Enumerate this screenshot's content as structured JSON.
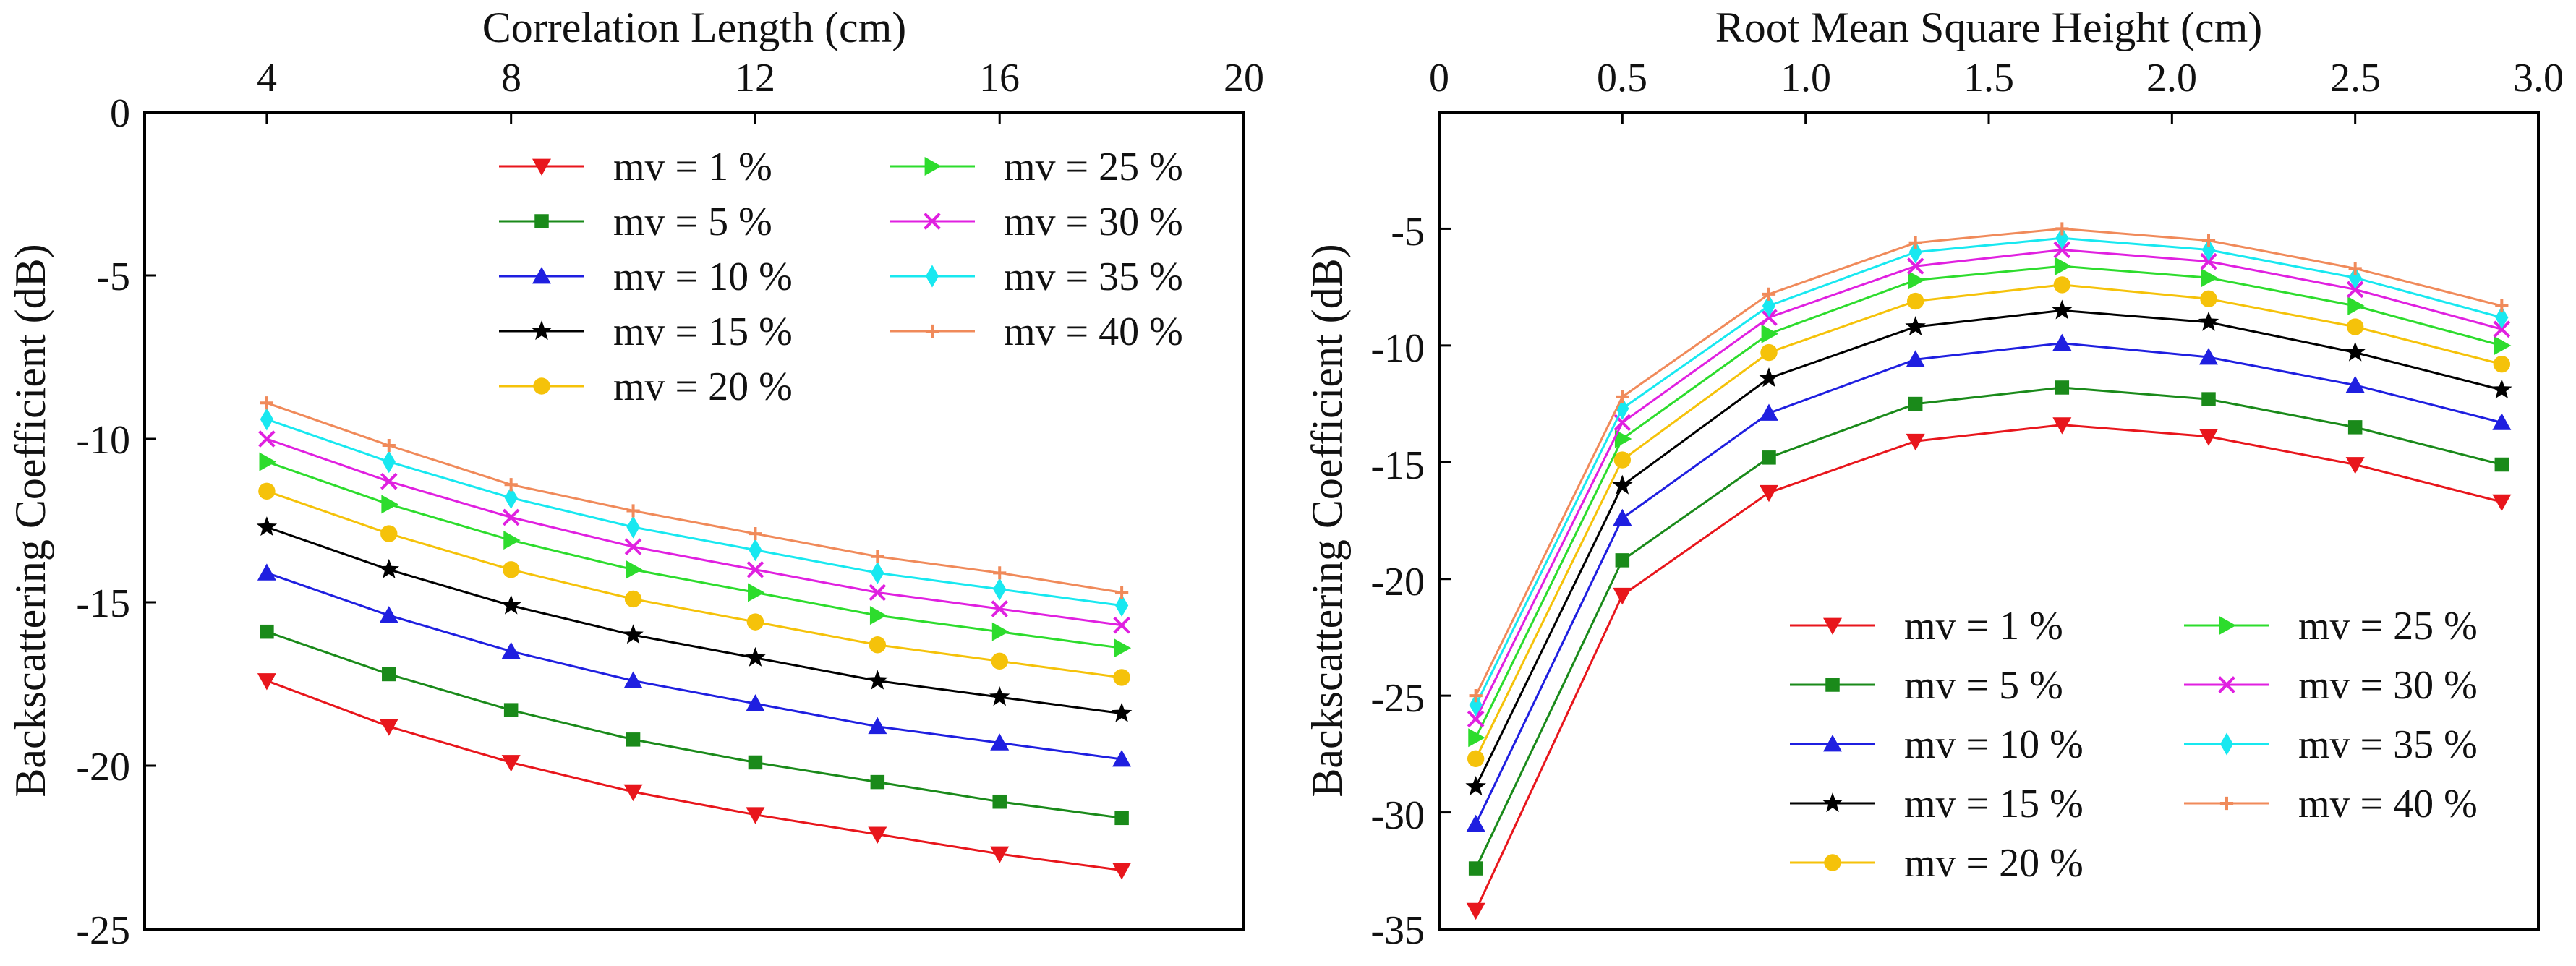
{
  "legend_labels": [
    "mv = 1 %",
    "mv = 5 %",
    "mv = 10 %",
    "mv = 15 %",
    "mv = 20 %",
    "mv = 25 %",
    "mv = 30 %",
    "mv = 35 %",
    "mv = 40 %"
  ],
  "chart_data": [
    {
      "type": "line",
      "title": "",
      "xlabel": "Correlation Length (cm)",
      "ylabel": "Backscattering Coefficient (dB)",
      "x_axis_position": "top",
      "xlim": [
        2,
        20
      ],
      "ylim": [
        -25,
        0
      ],
      "xticks": [
        "4",
        "8",
        "12",
        "16",
        "20"
      ],
      "yticks": [
        "0",
        "-5",
        "-10",
        "-15",
        "-20",
        "-25"
      ],
      "legend_placement": "top-right, two columns",
      "x": [
        4,
        6,
        8,
        10,
        12,
        14,
        16,
        18
      ],
      "series": [
        {
          "name": "mv = 1 %",
          "color": "#e8161c",
          "marker": "triangle-down",
          "values": [
            -17.4,
            -18.8,
            -19.9,
            -20.8,
            -21.5,
            -22.1,
            -22.7,
            -23.2
          ]
        },
        {
          "name": "mv = 5 %",
          "color": "#1a8a1a",
          "marker": "square",
          "values": [
            -15.9,
            -17.2,
            -18.3,
            -19.2,
            -19.9,
            -20.5,
            -21.1,
            -21.6
          ]
        },
        {
          "name": "mv = 10 %",
          "color": "#1f1fe0",
          "marker": "triangle-up",
          "values": [
            -14.1,
            -15.4,
            -16.5,
            -17.4,
            -18.1,
            -18.8,
            -19.3,
            -19.8
          ]
        },
        {
          "name": "mv = 15 %",
          "color": "#000000",
          "marker": "star",
          "values": [
            -12.7,
            -14.0,
            -15.1,
            -16.0,
            -16.7,
            -17.4,
            -17.9,
            -18.4
          ]
        },
        {
          "name": "mv = 20 %",
          "color": "#f5c20a",
          "marker": "circle",
          "values": [
            -11.6,
            -12.9,
            -14.0,
            -14.9,
            -15.6,
            -16.3,
            -16.8,
            -17.3
          ]
        },
        {
          "name": "mv = 25 %",
          "color": "#2ddc2d",
          "marker": "triangle-right",
          "values": [
            -10.7,
            -12.0,
            -13.1,
            -14.0,
            -14.7,
            -15.4,
            -15.9,
            -16.4
          ]
        },
        {
          "name": "mv = 30 %",
          "color": "#e020e0",
          "marker": "x",
          "values": [
            -10.0,
            -11.3,
            -12.4,
            -13.3,
            -14.0,
            -14.7,
            -15.2,
            -15.7
          ]
        },
        {
          "name": "mv = 35 %",
          "color": "#18e8f0",
          "marker": "diamond",
          "values": [
            -9.4,
            -10.7,
            -11.8,
            -12.7,
            -13.4,
            -14.1,
            -14.6,
            -15.1
          ]
        },
        {
          "name": "mv = 40 %",
          "color": "#f08a5a",
          "marker": "plus",
          "values": [
            -8.9,
            -10.2,
            -11.4,
            -12.2,
            -12.9,
            -13.6,
            -14.1,
            -14.7
          ]
        }
      ]
    },
    {
      "type": "line",
      "title": "",
      "xlabel": "Root Mean Square Height (cm)",
      "ylabel": "Backscattering Coefficient (dB)",
      "x_axis_position": "top",
      "xlim": [
        0,
        3.0
      ],
      "ylim": [
        -35,
        0
      ],
      "xticks": [
        "0",
        "0.5",
        "1.0",
        "1.5",
        "2.0",
        "2.5",
        "3.0"
      ],
      "yticks": [
        "-5",
        "-10",
        "-15",
        "-20",
        "-25",
        "-30",
        "-35"
      ],
      "legend_placement": "bottom-right, two columns",
      "x": [
        0.1,
        0.5,
        0.9,
        1.3,
        1.7,
        2.1,
        2.5,
        2.9
      ],
      "series": [
        {
          "name": "mv = 1 %",
          "color": "#e8161c",
          "marker": "triangle-down",
          "values": [
            -34.2,
            -20.7,
            -16.3,
            -14.1,
            -13.4,
            -13.9,
            -15.1,
            -16.7
          ]
        },
        {
          "name": "mv = 5 %",
          "color": "#1a8a1a",
          "marker": "square",
          "values": [
            -32.4,
            -19.2,
            -14.8,
            -12.5,
            -11.8,
            -12.3,
            -13.5,
            -15.1
          ]
        },
        {
          "name": "mv = 10 %",
          "color": "#1f1fe0",
          "marker": "triangle-up",
          "values": [
            -30.5,
            -17.4,
            -12.9,
            -10.6,
            -9.9,
            -10.5,
            -11.7,
            -13.3
          ]
        },
        {
          "name": "mv = 15 %",
          "color": "#000000",
          "marker": "star",
          "values": [
            -28.9,
            -16.0,
            -11.4,
            -9.2,
            -8.5,
            -9.0,
            -10.3,
            -11.9
          ]
        },
        {
          "name": "mv = 20 %",
          "color": "#f5c20a",
          "marker": "circle",
          "values": [
            -27.7,
            -14.9,
            -10.3,
            -8.1,
            -7.4,
            -8.0,
            -9.2,
            -10.8
          ]
        },
        {
          "name": "mv = 25 %",
          "color": "#2ddc2d",
          "marker": "triangle-right",
          "values": [
            -26.8,
            -14.0,
            -9.5,
            -7.2,
            -6.6,
            -7.1,
            -8.3,
            -10.0
          ]
        },
        {
          "name": "mv = 30 %",
          "color": "#e020e0",
          "marker": "x",
          "values": [
            -26.0,
            -13.3,
            -8.8,
            -6.6,
            -5.9,
            -6.4,
            -7.6,
            -9.3
          ]
        },
        {
          "name": "mv = 35 %",
          "color": "#18e8f0",
          "marker": "diamond",
          "values": [
            -25.4,
            -12.7,
            -8.3,
            -6.0,
            -5.4,
            -5.9,
            -7.1,
            -8.8
          ]
        },
        {
          "name": "mv = 40 %",
          "color": "#f08a5a",
          "marker": "plus",
          "values": [
            -25.0,
            -12.2,
            -7.8,
            -5.6,
            -5.0,
            -5.5,
            -6.7,
            -8.3
          ]
        }
      ]
    }
  ]
}
